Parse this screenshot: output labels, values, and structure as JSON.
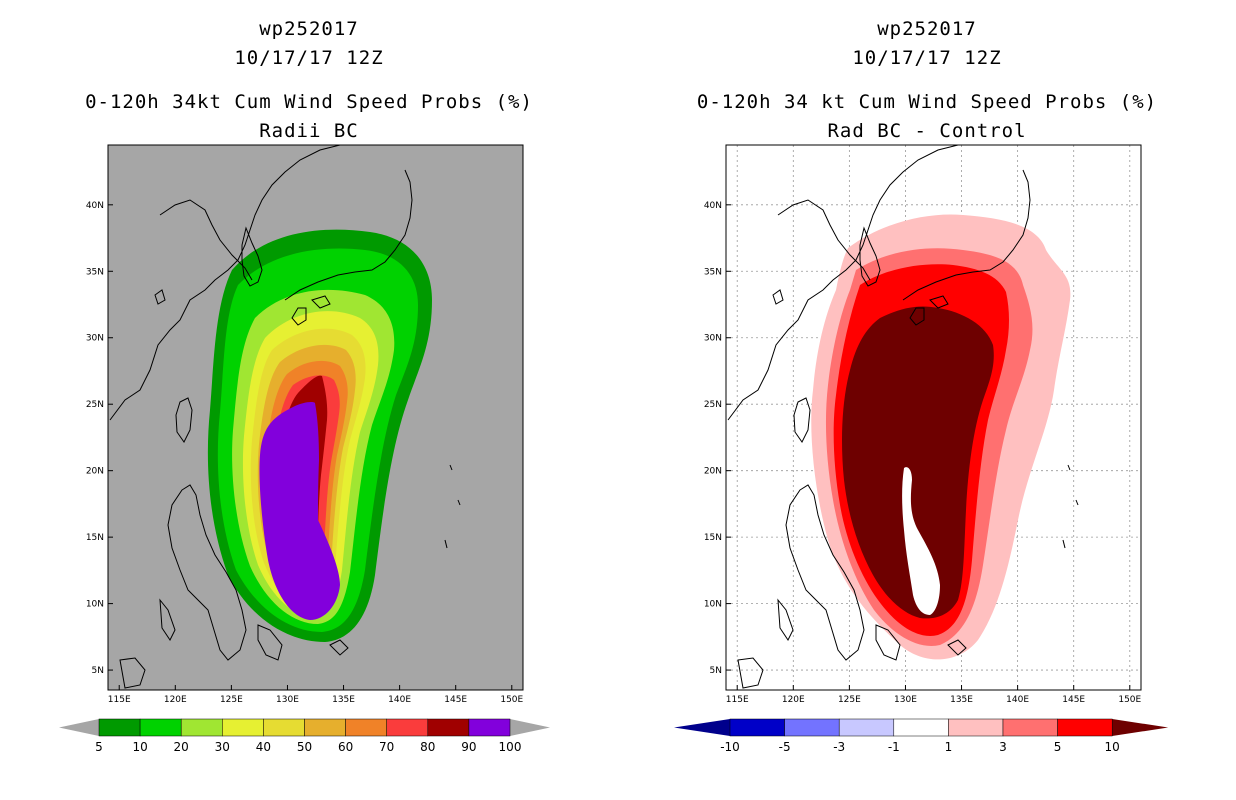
{
  "left": {
    "title_storm": "wp252017",
    "title_date": "10/17/17 12Z",
    "title_product": "0-120h 34kt Cum Wind Speed Probs (%)",
    "title_sub": "Radii BC",
    "lat_labels": [
      "40N",
      "35N",
      "30N",
      "25N",
      "20N",
      "15N",
      "10N",
      "5N"
    ],
    "lon_labels": [
      "115E",
      "120E",
      "125E",
      "130E",
      "135E",
      "140E",
      "145E",
      "150E"
    ],
    "colorbar_labels": [
      "5",
      "10",
      "20",
      "30",
      "40",
      "50",
      "60",
      "70",
      "80",
      "90",
      "100"
    ],
    "colorbar_colors": [
      "#009a00",
      "#00d200",
      "#a0e632",
      "#e6f032",
      "#e6dc32",
      "#e6af2d",
      "#f08228",
      "#fa3c3c",
      "#a00000",
      "#8200dc"
    ],
    "background_color": "#a6a6a6"
  },
  "right": {
    "title_storm": "wp252017",
    "title_date": "10/17/17 12Z",
    "title_product": "0-120h 34 kt Cum Wind Speed Probs (%)",
    "title_sub": "Rad BC - Control",
    "lat_labels": [
      "40N",
      "35N",
      "30N",
      "25N",
      "20N",
      "15N",
      "10N",
      "5N"
    ],
    "lon_labels": [
      "115E",
      "120E",
      "125E",
      "130E",
      "135E",
      "140E",
      "145E",
      "150E"
    ],
    "colorbar_labels": [
      "-10",
      "-5",
      "-3",
      "-1",
      "1",
      "3",
      "5",
      "10"
    ],
    "colorbar_colors": [
      "#0000c8",
      "#7373ff",
      "#c8c8ff",
      "#ffffff",
      "#ffc0c0",
      "#ff7070",
      "#ff0000"
    ],
    "arrow_low_color": "#00008c",
    "arrow_high_color": "#6e0000"
  }
}
